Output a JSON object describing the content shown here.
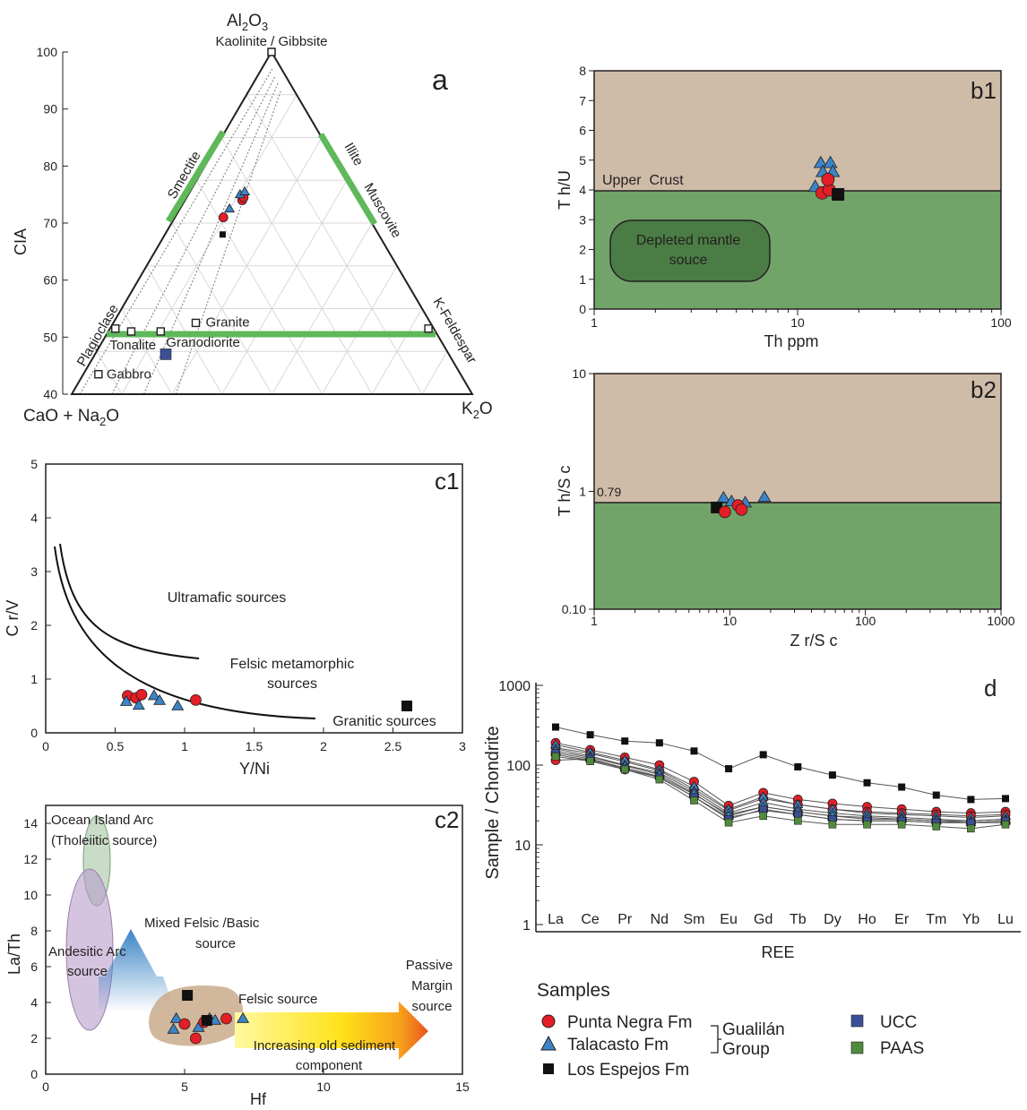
{
  "colors": {
    "ink": "#231f20",
    "red": "#e31e26",
    "blue": "#3c84c6",
    "black": "#111111",
    "ucc": "#3a4f97",
    "paas": "#4f8b3d",
    "crust_fill": "#cfbca8",
    "mantle_fill": "#72a469",
    "mantle_box": "#4b7c45",
    "trend_green": "#5fb85a",
    "felsic_blob": "#c9ab8c"
  },
  "chart_data": [
    {
      "id": "a",
      "type": "scatter",
      "subtype": "ternary",
      "panel_label": "a",
      "apex_top": "Al₂O₃",
      "apex_top_sub": "Kaolinite / Gibbsite",
      "apex_left": "CaO + Na₂O",
      "apex_right": "K₂O",
      "axis_label": "CIA",
      "cia_ticks": [
        "40",
        "50",
        "60",
        "70",
        "80",
        "90",
        "100"
      ],
      "edge_labels": [
        "Smectite",
        "Illite",
        "Muscovite",
        "Plagioclase",
        "K-Feldespar"
      ],
      "minerals": [
        {
          "label": "Granite",
          "cia": 52.5,
          "k2o_frac": 0.26
        },
        {
          "label": "Tonalite",
          "cia": 51,
          "k2o_frac": 0.07
        },
        {
          "label": "Granodiorite",
          "cia": 51,
          "k2o_frac": 0.16
        },
        {
          "label": "Gabbro",
          "cia": 43.5,
          "k2o_frac": 0.04
        }
      ],
      "points": [
        {
          "series": "Punta Negra Fm",
          "cia": 71,
          "k2o_frac": 0.25
        },
        {
          "series": "Punta Negra Fm",
          "cia": 74,
          "k2o_frac": 0.33
        },
        {
          "series": "Punta Negra Fm",
          "cia": 74.5,
          "k2o_frac": 0.335
        },
        {
          "series": "Talacasto Fm",
          "cia": 72.5,
          "k2o_frac": 0.27
        },
        {
          "series": "Talacasto Fm",
          "cia": 75,
          "k2o_frac": 0.31
        },
        {
          "series": "Talacasto Fm",
          "cia": 75.5,
          "k2o_frac": 0.335
        },
        {
          "series": "Los Espejos Fm",
          "cia": 68,
          "k2o_frac": 0.27
        },
        {
          "series": "UCC",
          "cia": 47,
          "k2o_frac": 0.2
        }
      ]
    },
    {
      "id": "b1",
      "type": "scatter",
      "panel_label": "b1",
      "xlabel": "Th ppm",
      "ylabel": "T h/U",
      "xscale": "log",
      "xlim": [
        1,
        100
      ],
      "ylim": [
        0,
        8
      ],
      "xticks": [
        "1",
        "10",
        "100"
      ],
      "yticks": [
        "0",
        "1",
        "2",
        "3",
        "4",
        "5",
        "6",
        "7",
        "8"
      ],
      "reference_line": {
        "y": 4,
        "label": "Upper  Crust"
      },
      "region_label": "Depleted mantle souce",
      "points": [
        {
          "series": "Talacasto Fm",
          "x": 13,
          "y": 4.9
        },
        {
          "series": "Talacasto Fm",
          "x": 14.5,
          "y": 4.9
        },
        {
          "series": "Talacasto Fm",
          "x": 13.3,
          "y": 4.6
        },
        {
          "series": "Talacasto Fm",
          "x": 14.9,
          "y": 4.6
        },
        {
          "series": "Talacasto Fm",
          "x": 12.2,
          "y": 4.1
        },
        {
          "series": "Punta Negra Fm",
          "x": 13.2,
          "y": 3.9
        },
        {
          "series": "Punta Negra Fm",
          "x": 14.3,
          "y": 4.0
        },
        {
          "series": "Punta Negra Fm",
          "x": 14.1,
          "y": 4.35
        },
        {
          "series": "Los Espejos Fm",
          "x": 15.8,
          "y": 3.85
        }
      ]
    },
    {
      "id": "b2",
      "type": "scatter",
      "panel_label": "b2",
      "xlabel": "Z r/S c",
      "ylabel": "T h/S c",
      "xscale": "log",
      "yscale": "log",
      "xlim": [
        1,
        1000
      ],
      "ylim": [
        0.1,
        10
      ],
      "xticks": [
        "1",
        "10",
        "100",
        "1000"
      ],
      "yticks": [
        "0.10",
        "1",
        "10"
      ],
      "reference_line": {
        "y": 0.79,
        "label": "0.79"
      },
      "points": [
        {
          "series": "Talacasto Fm",
          "x": 9,
          "y": 0.88
        },
        {
          "series": "Talacasto Fm",
          "x": 10.3,
          "y": 0.82
        },
        {
          "series": "Talacasto Fm",
          "x": 13,
          "y": 0.8
        },
        {
          "series": "Talacasto Fm",
          "x": 18,
          "y": 0.89
        },
        {
          "series": "Los Espejos Fm",
          "x": 8,
          "y": 0.73
        },
        {
          "series": "Punta Negra Fm",
          "x": 9.2,
          "y": 0.67
        },
        {
          "series": "Punta Negra Fm",
          "x": 11.5,
          "y": 0.76
        },
        {
          "series": "Punta Negra Fm",
          "x": 12.2,
          "y": 0.7
        }
      ]
    },
    {
      "id": "c1",
      "type": "scatter",
      "panel_label": "c1",
      "xlabel": "Y/Ni",
      "ylabel": "C r/V",
      "xlim": [
        0,
        3
      ],
      "ylim": [
        0,
        5
      ],
      "xticks": [
        "0",
        "0.5",
        "1",
        "1.5",
        "2",
        "2.5",
        "3"
      ],
      "yticks": [
        "0",
        "1",
        "2",
        "3",
        "4",
        "5"
      ],
      "region_labels": [
        "Ultramafic sources",
        "Felsic metamorphic sources",
        "Granitic sources"
      ],
      "points": [
        {
          "series": "Punta Negra Fm",
          "x": 0.59,
          "y": 0.69
        },
        {
          "series": "Punta Negra Fm",
          "x": 0.65,
          "y": 0.65
        },
        {
          "series": "Punta Negra Fm",
          "x": 0.69,
          "y": 0.71
        },
        {
          "series": "Punta Negra Fm",
          "x": 1.08,
          "y": 0.61
        },
        {
          "series": "Talacasto Fm",
          "x": 0.58,
          "y": 0.58
        },
        {
          "series": "Talacasto Fm",
          "x": 0.67,
          "y": 0.51
        },
        {
          "series": "Talacasto Fm",
          "x": 0.78,
          "y": 0.69
        },
        {
          "series": "Talacasto Fm",
          "x": 0.82,
          "y": 0.6
        },
        {
          "series": "Talacasto Fm",
          "x": 0.95,
          "y": 0.5
        },
        {
          "series": "Los Espejos Fm",
          "x": 2.6,
          "y": 0.5
        }
      ]
    },
    {
      "id": "c2",
      "type": "scatter",
      "panel_label": "c2",
      "xlabel": "Hf",
      "ylabel": "La/Th",
      "xlim": [
        0,
        15
      ],
      "ylim": [
        0,
        15
      ],
      "xticks": [
        "0",
        "5",
        "10",
        "15"
      ],
      "yticks": [
        "0",
        "2",
        "4",
        "6",
        "8",
        "10",
        "12",
        "14"
      ],
      "region_labels": [
        "Ocean Island Arc",
        "(Tholeiitic source)",
        "Andesitic Arc",
        "source",
        "Mixed Felsic /Basic",
        "source",
        "Felsic source",
        "Passive",
        "Margin",
        "source",
        "Increasing old sediment",
        "component"
      ],
      "points": [
        {
          "series": "Talacasto Fm",
          "x": 4.7,
          "y": 3.1
        },
        {
          "series": "Talacasto Fm",
          "x": 4.6,
          "y": 2.5
        },
        {
          "series": "Talacasto Fm",
          "x": 5.5,
          "y": 2.6
        },
        {
          "series": "Talacasto Fm",
          "x": 5.9,
          "y": 3.1
        },
        {
          "series": "Talacasto Fm",
          "x": 7.1,
          "y": 3.1
        },
        {
          "series": "Talacasto Fm",
          "x": 6.1,
          "y": 3.0
        },
        {
          "series": "Punta Negra Fm",
          "x": 5.0,
          "y": 2.8
        },
        {
          "series": "Punta Negra Fm",
          "x": 5.4,
          "y": 2.0
        },
        {
          "series": "Punta Negra Fm",
          "x": 6.5,
          "y": 3.1
        },
        {
          "series": "Punta Negra Fm",
          "x": 5.7,
          "y": 2.9
        },
        {
          "series": "Los Espejos Fm",
          "x": 5.1,
          "y": 4.4
        },
        {
          "series": "Los Espejos Fm",
          "x": 5.8,
          "y": 3.0
        }
      ]
    },
    {
      "id": "d",
      "type": "line",
      "panel_label": "d",
      "xlabel": "REE",
      "ylabel": "Sample / Chondrite",
      "yscale": "log",
      "ylim": [
        1,
        1000
      ],
      "yticks": [
        "1",
        "10",
        "100",
        "1000"
      ],
      "categories": [
        "La",
        "Ce",
        "Pr",
        "Nd",
        "Sm",
        "Eu",
        "Gd",
        "Tb",
        "Dy",
        "Ho",
        "Er",
        "Tm",
        "Yb",
        "Lu"
      ],
      "series": [
        {
          "name": "Los Espejos Fm",
          "values": [
            300,
            240,
            200,
            190,
            150,
            90,
            135,
            95,
            75,
            60,
            53,
            42,
            37,
            38
          ]
        },
        {
          "name": "Punta Negra Fm",
          "values": [
            190,
            155,
            125,
            100,
            62,
            31,
            45,
            37,
            33,
            30,
            28,
            26,
            25,
            26
          ]
        },
        {
          "name": "Punta Negra Fm",
          "values": [
            165,
            140,
            110,
            85,
            50,
            27,
            38,
            32,
            28,
            26,
            25,
            24,
            23,
            24
          ]
        },
        {
          "name": "Punta Negra Fm",
          "values": [
            115,
            120,
            88,
            70,
            40,
            22,
            27,
            24,
            21,
            20,
            20,
            19,
            19,
            19
          ]
        },
        {
          "name": "Punta Negra Fm",
          "values": [
            135,
            115,
            92,
            72,
            43,
            24,
            30,
            26,
            23,
            22,
            21,
            20,
            20,
            21
          ]
        },
        {
          "name": "Talacasto Fm",
          "values": [
            180,
            145,
            115,
            88,
            54,
            28,
            40,
            32,
            28,
            25,
            24,
            23,
            22,
            23
          ]
        },
        {
          "name": "Talacasto Fm",
          "values": [
            160,
            130,
            100,
            80,
            47,
            25,
            34,
            28,
            25,
            23,
            22,
            21,
            20,
            21
          ]
        },
        {
          "name": "Talacasto Fm",
          "values": [
            150,
            125,
            98,
            76,
            44,
            23,
            30,
            26,
            23,
            21,
            21,
            20,
            19,
            20
          ]
        },
        {
          "name": "UCC",
          "values": [
            142,
            120,
            92,
            70,
            40,
            21,
            28,
            24,
            21,
            20,
            20,
            19,
            19,
            20
          ]
        },
        {
          "name": "PAAS",
          "values": [
            128,
            112,
            88,
            66,
            36,
            19,
            23,
            20,
            18,
            18,
            18,
            17,
            16,
            18
          ]
        }
      ]
    }
  ],
  "legend": {
    "title": "Samples",
    "items": [
      {
        "label": "Punta Negra Fm",
        "marker": "circle",
        "color": "#e31e26"
      },
      {
        "label": "Talacasto Fm",
        "marker": "triangle",
        "color": "#3c84c6"
      },
      {
        "label": "Los Espejos Fm",
        "marker": "square",
        "color": "#111111"
      },
      {
        "label": "UCC",
        "marker": "square",
        "color": "#3a4f97"
      },
      {
        "label": "PAAS",
        "marker": "square",
        "color": "#4f8b3d"
      }
    ],
    "group_label_1": "Gualilán",
    "group_label_2": "Group"
  }
}
